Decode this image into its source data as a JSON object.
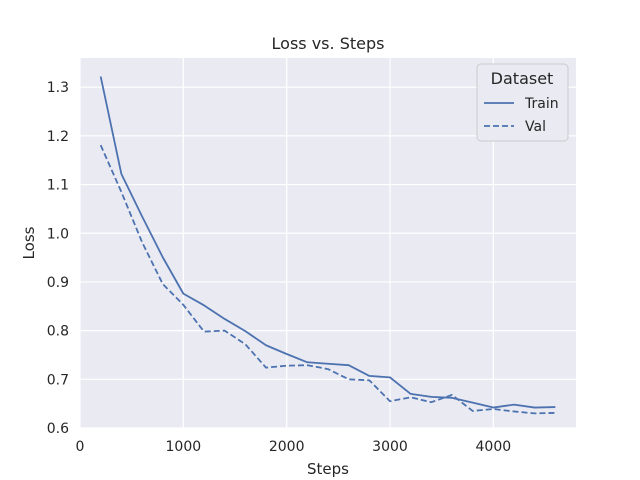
{
  "chart_data": {
    "type": "line",
    "title": "Loss vs. Steps",
    "xlabel": "Steps",
    "ylabel": "Loss",
    "xlim": [
      0,
      4800
    ],
    "ylim": [
      0.6,
      1.36
    ],
    "xticks": [
      0,
      1000,
      2000,
      3000,
      4000
    ],
    "yticks": [
      0.6,
      0.7,
      0.8,
      0.9,
      1.0,
      1.1,
      1.2,
      1.3
    ],
    "grid": true,
    "legend": {
      "title": "Dataset",
      "placement": "top-right"
    },
    "colors": {
      "background": "#eaeaf2",
      "grid": "#ffffff",
      "line": "#4c72b0"
    },
    "x": [
      200,
      400,
      600,
      800,
      1000,
      1200,
      1400,
      1600,
      1800,
      2000,
      2200,
      2400,
      2600,
      2800,
      3000,
      3200,
      3400,
      3600,
      3800,
      4000,
      4200,
      4400,
      4600
    ],
    "series": [
      {
        "name": "Train",
        "style": "solid",
        "values": [
          1.322,
          1.122,
          1.035,
          0.951,
          0.876,
          0.852,
          0.824,
          0.799,
          0.77,
          0.752,
          0.735,
          0.732,
          0.729,
          0.707,
          0.704,
          0.67,
          0.664,
          0.662,
          0.652,
          0.642,
          0.648,
          0.642,
          0.643
        ]
      },
      {
        "name": "Val",
        "style": "dashed",
        "values": [
          1.181,
          1.085,
          0.982,
          0.896,
          0.853,
          0.798,
          0.8,
          0.772,
          0.724,
          0.728,
          0.729,
          0.721,
          0.7,
          0.698,
          0.655,
          0.663,
          0.653,
          0.668,
          0.635,
          0.639,
          0.634,
          0.63,
          0.631
        ]
      }
    ]
  }
}
